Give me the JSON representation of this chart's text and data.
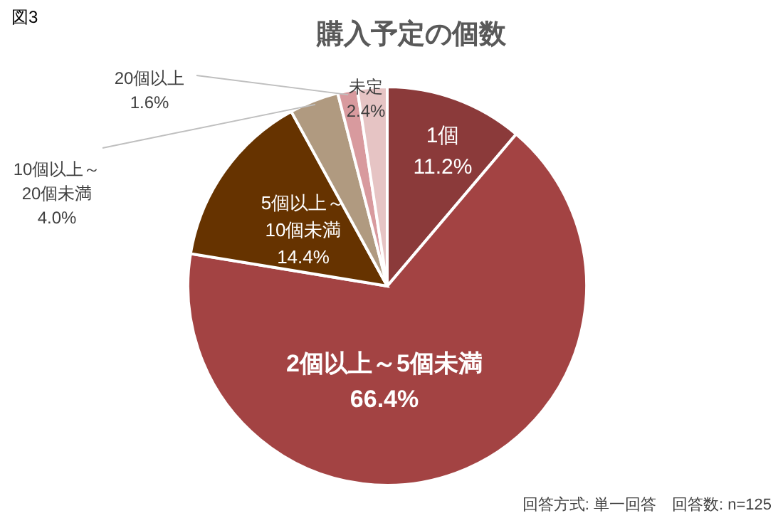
{
  "chart_data": {
    "type": "pie",
    "title": "購入予定の個数",
    "categories": [
      "1個",
      "2個以上～5個未満",
      "5個以上～\n10個未満",
      "10個以上～\n20個未満",
      "20個以上",
      "未定"
    ],
    "values": [
      11.2,
      66.4,
      14.4,
      4.0,
      1.6,
      2.4
    ],
    "value_labels": [
      "11.2%",
      "66.4%",
      "14.4%",
      "4.0%",
      "1.6%",
      "2.4%"
    ],
    "colors": [
      "#8b3a3a",
      "#a34343",
      "#663300",
      "#b09a80",
      "#d89a9e",
      "#e6c4c4"
    ],
    "annotations": [
      "図3",
      "回答方式: 単一回答　回答数: n=125"
    ]
  }
}
